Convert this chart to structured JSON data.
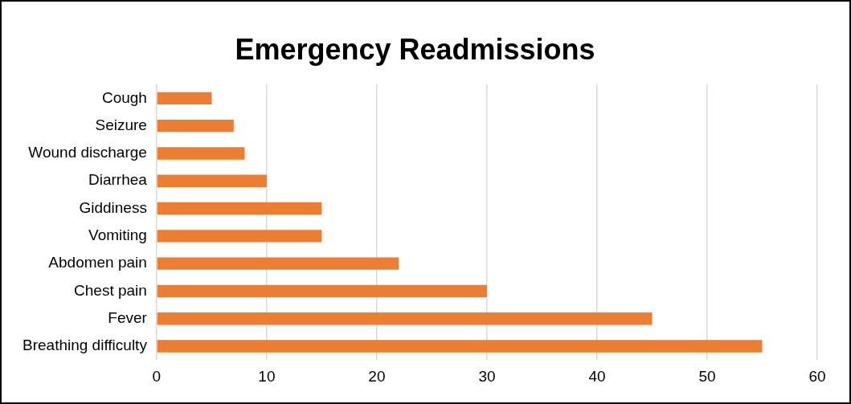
{
  "chart_data": {
    "type": "bar",
    "orientation": "horizontal",
    "title": "Emergency Readmissions",
    "categories": [
      "Cough",
      "Seizure",
      "Wound discharge",
      "Diarrhea",
      "Giddiness",
      "Vomiting",
      "Abdomen pain",
      "Chest pain",
      "Fever",
      "Breathing difficulty"
    ],
    "values": [
      5,
      7,
      8,
      10,
      15,
      15,
      22,
      30,
      45,
      55
    ],
    "color": "#ed7d31",
    "xlim": [
      0,
      60
    ],
    "xticks": [
      0,
      10,
      20,
      30,
      40,
      50,
      60
    ],
    "grid": "x",
    "legend": false
  }
}
